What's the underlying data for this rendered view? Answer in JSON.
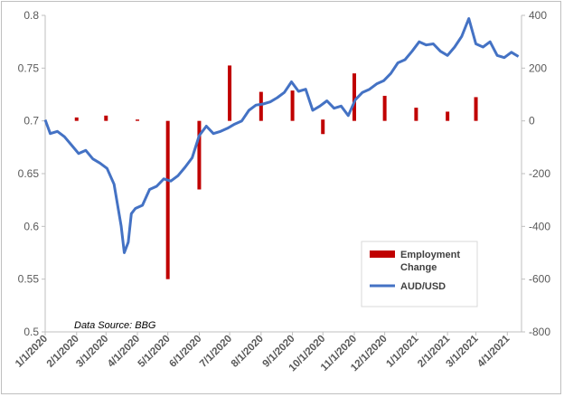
{
  "chart_data": {
    "type": "bar+line",
    "title": "",
    "xlabel": "",
    "ylabel_left": "",
    "ylabel_right": "",
    "ylim_left": [
      0.5,
      0.8
    ],
    "ylim_right": [
      -800,
      400
    ],
    "y_ticks_left": [
      "0.5",
      "0.55",
      "0.6",
      "0.65",
      "0.7",
      "0.75",
      "0.8"
    ],
    "y_ticks_right": [
      "-800",
      "-600",
      "-400",
      "-200",
      "0",
      "200",
      "400"
    ],
    "x_range": [
      "2020-01-01",
      "2021-04-15"
    ],
    "x_ticks": [
      "1/1/2020",
      "2/1/2020",
      "3/1/2020",
      "4/1/2020",
      "5/1/2020",
      "6/1/2020",
      "7/1/2020",
      "8/1/2020",
      "9/1/2020",
      "10/1/2020",
      "11/1/2020",
      "12/1/2020",
      "1/1/2021",
      "2/1/2021",
      "3/1/2021",
      "4/1/2021"
    ],
    "grid": false,
    "legend_position": "bottom-right",
    "annotation": "Data Source: BBG",
    "colors": {
      "bars": "#c00000",
      "line": "#4472c4",
      "axis": "#bfbfbf"
    },
    "series": [
      {
        "name": "Employment Change",
        "type": "bar",
        "axis": "right",
        "x": [
          "2020-01-01",
          "2020-02-01",
          "2020-03-01",
          "2020-04-01",
          "2020-05-01",
          "2020-06-01",
          "2020-07-01",
          "2020-08-01",
          "2020-09-01",
          "2020-10-01",
          "2020-11-01",
          "2020-12-01",
          "2021-01-01",
          "2021-02-01",
          "2021-03-01"
        ],
        "values": [
          0,
          13,
          20,
          5,
          0,
          0,
          210,
          110,
          115,
          5,
          180,
          95,
          50,
          35,
          90
        ],
        "lows": [
          0,
          0,
          0,
          0,
          -600,
          -260,
          0,
          0,
          0,
          -50,
          0,
          0,
          0,
          0,
          0
        ],
        "note": "monthly bars; extend from low to value"
      },
      {
        "name": "AUD/USD",
        "type": "line",
        "axis": "left",
        "x": [
          "2020-01-01",
          "2020-01-06",
          "2020-01-13",
          "2020-01-20",
          "2020-01-27",
          "2020-02-03",
          "2020-02-10",
          "2020-02-17",
          "2020-02-24",
          "2020-03-02",
          "2020-03-09",
          "2020-03-16",
          "2020-03-19",
          "2020-03-23",
          "2020-03-26",
          "2020-03-30",
          "2020-04-06",
          "2020-04-13",
          "2020-04-20",
          "2020-04-27",
          "2020-05-04",
          "2020-05-11",
          "2020-05-18",
          "2020-05-25",
          "2020-06-01",
          "2020-06-08",
          "2020-06-15",
          "2020-06-22",
          "2020-06-29",
          "2020-07-06",
          "2020-07-13",
          "2020-07-20",
          "2020-07-27",
          "2020-08-03",
          "2020-08-10",
          "2020-08-17",
          "2020-08-24",
          "2020-08-31",
          "2020-09-07",
          "2020-09-14",
          "2020-09-21",
          "2020-09-28",
          "2020-10-05",
          "2020-10-12",
          "2020-10-19",
          "2020-10-26",
          "2020-11-02",
          "2020-11-09",
          "2020-11-16",
          "2020-11-23",
          "2020-11-30",
          "2020-12-07",
          "2020-12-14",
          "2020-12-21",
          "2020-12-28",
          "2021-01-04",
          "2021-01-11",
          "2021-01-18",
          "2021-01-25",
          "2021-02-01",
          "2021-02-08",
          "2021-02-15",
          "2021-02-22",
          "2021-03-01",
          "2021-03-08",
          "2021-03-15",
          "2021-03-22",
          "2021-03-29",
          "2021-04-05",
          "2021-04-12"
        ],
        "values": [
          0.701,
          0.688,
          0.69,
          0.685,
          0.677,
          0.669,
          0.672,
          0.664,
          0.66,
          0.655,
          0.64,
          0.6,
          0.575,
          0.585,
          0.612,
          0.617,
          0.62,
          0.635,
          0.638,
          0.645,
          0.643,
          0.648,
          0.656,
          0.665,
          0.686,
          0.695,
          0.688,
          0.69,
          0.693,
          0.697,
          0.7,
          0.71,
          0.715,
          0.716,
          0.718,
          0.722,
          0.727,
          0.737,
          0.728,
          0.73,
          0.71,
          0.714,
          0.719,
          0.712,
          0.714,
          0.705,
          0.72,
          0.727,
          0.73,
          0.735,
          0.738,
          0.745,
          0.755,
          0.758,
          0.766,
          0.775,
          0.772,
          0.773,
          0.766,
          0.762,
          0.77,
          0.78,
          0.797,
          0.773,
          0.77,
          0.775,
          0.762,
          0.76,
          0.765,
          0.761
        ]
      }
    ]
  }
}
